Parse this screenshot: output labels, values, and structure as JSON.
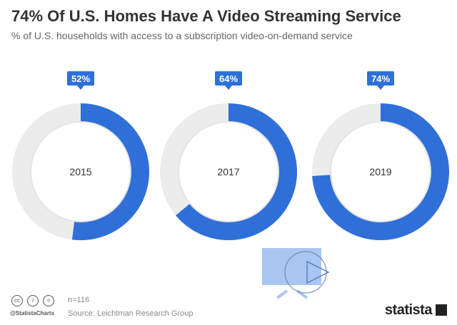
{
  "title": "74% Of U.S. Homes Have A Video Streaming Service",
  "subtitle": "% of U.S. households with access to a subscription video-on-demand service",
  "chart_data": {
    "type": "donut",
    "categories": [
      "2015",
      "2017",
      "2019"
    ],
    "values": [
      52,
      64,
      74
    ],
    "labels": [
      "52%",
      "64%",
      "74%"
    ],
    "colors": {
      "filled": "#2f6fd8",
      "remaining": "#ececec"
    }
  },
  "footer": {
    "n": "n=116",
    "source": "Source: Leichtman Research Group",
    "handle": "@StatistaCharts",
    "brand": "statista"
  }
}
